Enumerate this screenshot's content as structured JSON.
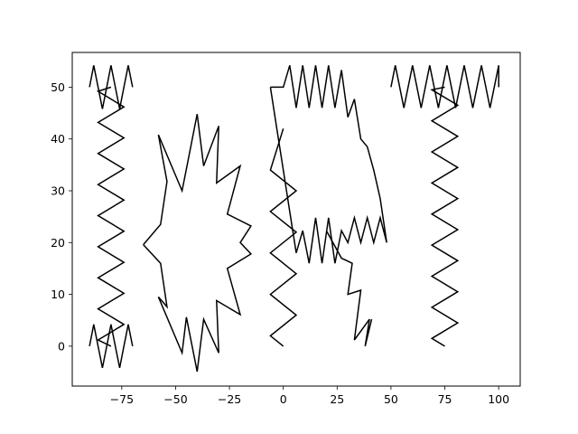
{
  "chart_data": {
    "type": "line",
    "title": "",
    "xlabel": "",
    "ylabel": "",
    "xlim": [
      -98,
      110
    ],
    "ylim": [
      -7.7,
      56.7
    ],
    "grid": false,
    "legend": "none",
    "line_color": "#000000",
    "x_ticks": [
      -75,
      -50,
      -25,
      0,
      25,
      50,
      75,
      100
    ],
    "y_ticks": [
      0,
      10,
      20,
      30,
      40,
      50
    ],
    "x_tick_labels": [
      "−75",
      "−50",
      "−25",
      "0",
      "25",
      "50",
      "75",
      "100"
    ],
    "y_tick_labels": [
      "0",
      "10",
      "20",
      "30",
      "40",
      "50"
    ],
    "shapes": [
      {
        "id": "left-top-zigzag",
        "x": [
          -90,
          -88,
          -86,
          -84,
          -82,
          -80,
          -78,
          -76,
          -74,
          -72,
          -70
        ],
        "y": [
          50,
          54.2,
          50,
          45.8,
          50,
          54.2,
          50,
          45.8,
          50,
          54.2,
          50
        ]
      },
      {
        "id": "left-vertical-zigzag",
        "x": [
          -80,
          -86,
          -74,
          -86,
          -74,
          -86,
          -74,
          -86,
          -74,
          -86,
          -74,
          -86,
          -74,
          -86,
          -74,
          -86,
          -74,
          -86,
          -74,
          -86,
          -80
        ],
        "y": [
          50,
          49.2,
          46.2,
          43.2,
          40.2,
          37.2,
          34.2,
          31.2,
          28.2,
          25.2,
          22.2,
          19.2,
          16.2,
          13.2,
          10.2,
          7.2,
          4.2,
          1.2,
          4.2,
          1.2,
          0
        ]
      },
      {
        "id": "left-bottom-zigzag",
        "x": [
          -90,
          -88,
          -86,
          -84,
          -82,
          -80,
          -78,
          -76,
          -74,
          -72,
          -70
        ],
        "y": [
          0,
          4.2,
          0,
          -4.2,
          0,
          4.2,
          0,
          -4.2,
          0,
          4.2,
          0
        ]
      },
      {
        "id": "center-left-starburst",
        "x": [
          -65,
          -57,
          -54,
          -58,
          -47,
          -45,
          -40,
          -37,
          -30,
          -31,
          -20,
          -26,
          -15,
          -20,
          -15,
          -26,
          -20,
          -31,
          -30,
          -37,
          -40,
          -45,
          -47,
          -58,
          -54,
          -57,
          -65
        ],
        "y": [
          19.6,
          23.5,
          31.8,
          40.8,
          30,
          34.2,
          44.8,
          34.8,
          42.5,
          31.5,
          34.8,
          25.5,
          23.2,
          20,
          17.8,
          15,
          6.1,
          8.8,
          -1.3,
          5.2,
          -4.9,
          5.6,
          -1.3,
          9.5,
          7.6,
          16,
          19.6
        ]
      },
      {
        "id": "center-right-starburst",
        "x": [
          -6,
          0,
          3,
          6,
          9,
          12,
          15,
          18,
          21,
          24,
          27,
          30,
          33,
          36,
          39,
          42,
          45,
          48,
          45,
          42,
          39,
          36,
          33,
          30,
          27,
          24,
          21,
          18,
          15,
          12,
          9,
          6,
          3,
          0,
          -3,
          -6
        ],
        "y": [
          50,
          50,
          54.2,
          46,
          54.2,
          46,
          54.2,
          46,
          54.2,
          46,
          53.3,
          44.2,
          47.7,
          40,
          38.5,
          34,
          28.5,
          20,
          24.8,
          20,
          24.8,
          20,
          24.8,
          20,
          22.3,
          16,
          24.8,
          16,
          24.8,
          16,
          22.3,
          18,
          26,
          34,
          42,
          50
        ]
      },
      {
        "id": "center-bottom-zigzag",
        "x": [
          0,
          -6,
          6,
          -6,
          6,
          -6,
          6,
          -6,
          6,
          -6,
          0
        ],
        "y": [
          0,
          2,
          6,
          10,
          14,
          18,
          22,
          26,
          30,
          34,
          42
        ]
      },
      {
        "id": "center-descending-zigzag",
        "x": [
          20,
          27,
          32,
          30,
          36,
          33,
          40,
          38,
          41
        ],
        "y": [
          22.3,
          17,
          16,
          10,
          10.8,
          1.2,
          5.2,
          0,
          5.2
        ]
      },
      {
        "id": "right-top-zigzag",
        "x": [
          50,
          52,
          56,
          60,
          64,
          68,
          72,
          76,
          80,
          84,
          88,
          92,
          96,
          100
        ],
        "y": [
          50,
          54.2,
          46,
          54.2,
          46,
          54.2,
          46,
          54.2,
          46,
          54.2,
          46,
          54.2,
          46,
          54.2
        ]
      },
      {
        "id": "right-vertical-zigzag",
        "x": [
          75,
          69,
          81,
          69,
          81,
          69,
          81,
          69,
          81,
          69,
          81,
          69,
          81,
          69,
          81,
          69,
          81,
          69,
          75
        ],
        "y": [
          50,
          49.5,
          46.5,
          43.5,
          40.5,
          37.5,
          34.5,
          31.5,
          28.5,
          25.5,
          22.5,
          19.5,
          16.5,
          13.5,
          10.5,
          7.5,
          4.5,
          1.5,
          0
        ]
      },
      {
        "id": "right-edge-tick",
        "x": [
          100,
          100
        ],
        "y": [
          54.2,
          50
        ]
      }
    ]
  }
}
